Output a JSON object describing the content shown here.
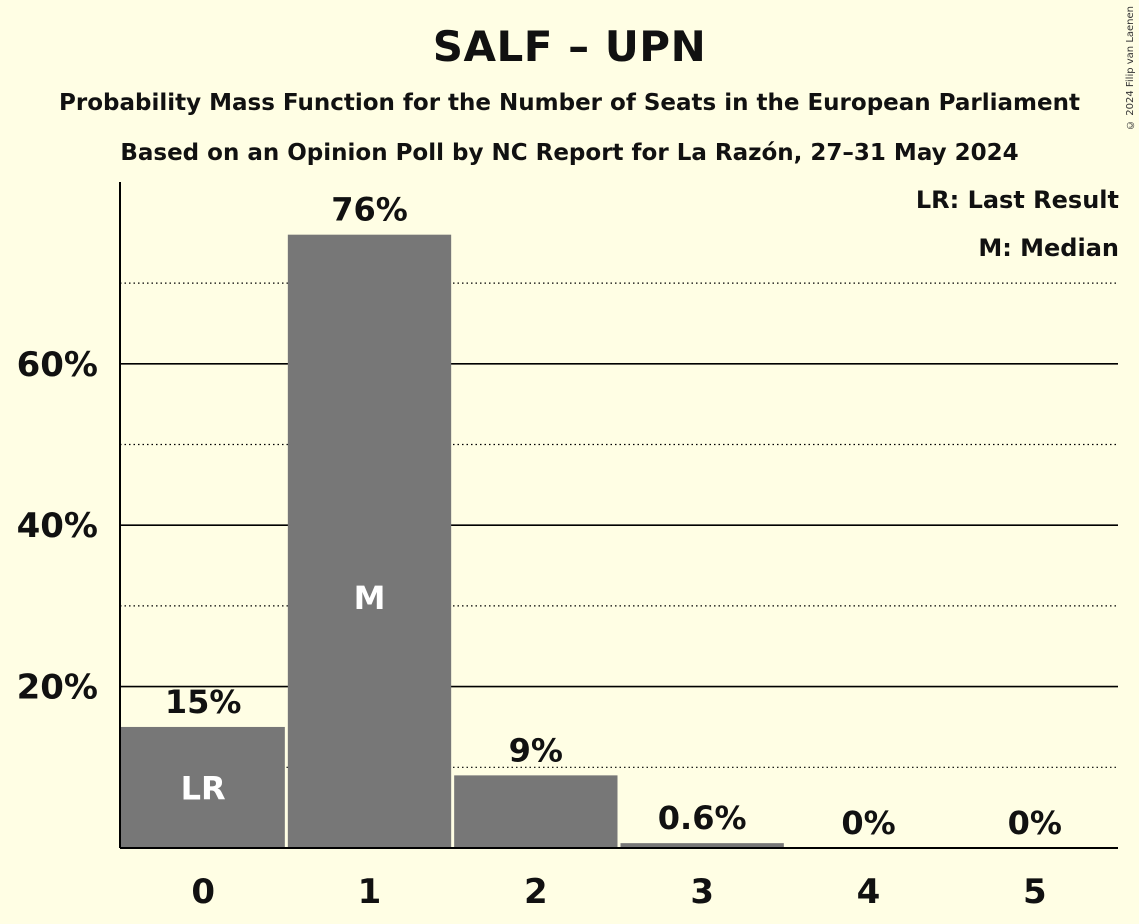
{
  "header": {
    "title": "SALF – UPN",
    "subtitle": "Probability Mass Function for the Number of Seats in the European Parliament",
    "subtitle2": "Based on an Opinion Poll by NC Report for La Razón, 27–31 May 2024",
    "copyright": "© 2024 Filip van Laenen"
  },
  "legend": {
    "lr": "LR: Last Result",
    "median": "M: Median"
  },
  "colors": {
    "background": "#FFFEE4",
    "bar": "#777777",
    "axis": "#000000"
  },
  "chart_data": {
    "type": "bar",
    "categories": [
      "0",
      "1",
      "2",
      "3",
      "4",
      "5"
    ],
    "values": [
      15,
      76,
      9,
      0.6,
      0,
      0
    ],
    "value_labels": [
      "15%",
      "76%",
      "9%",
      "0.6%",
      "0%",
      "0%"
    ],
    "bar_markers": [
      "LR",
      "M",
      "",
      "",
      "",
      ""
    ],
    "yticks": [
      20,
      40,
      60
    ],
    "ytick_labels": [
      "20%",
      "40%",
      "60%"
    ],
    "minor_gridlines": [
      10,
      30,
      50,
      70
    ],
    "ylim": [
      0,
      82
    ],
    "xlabel": "",
    "ylabel": "",
    "grid": true,
    "legend_position": "top-right"
  }
}
